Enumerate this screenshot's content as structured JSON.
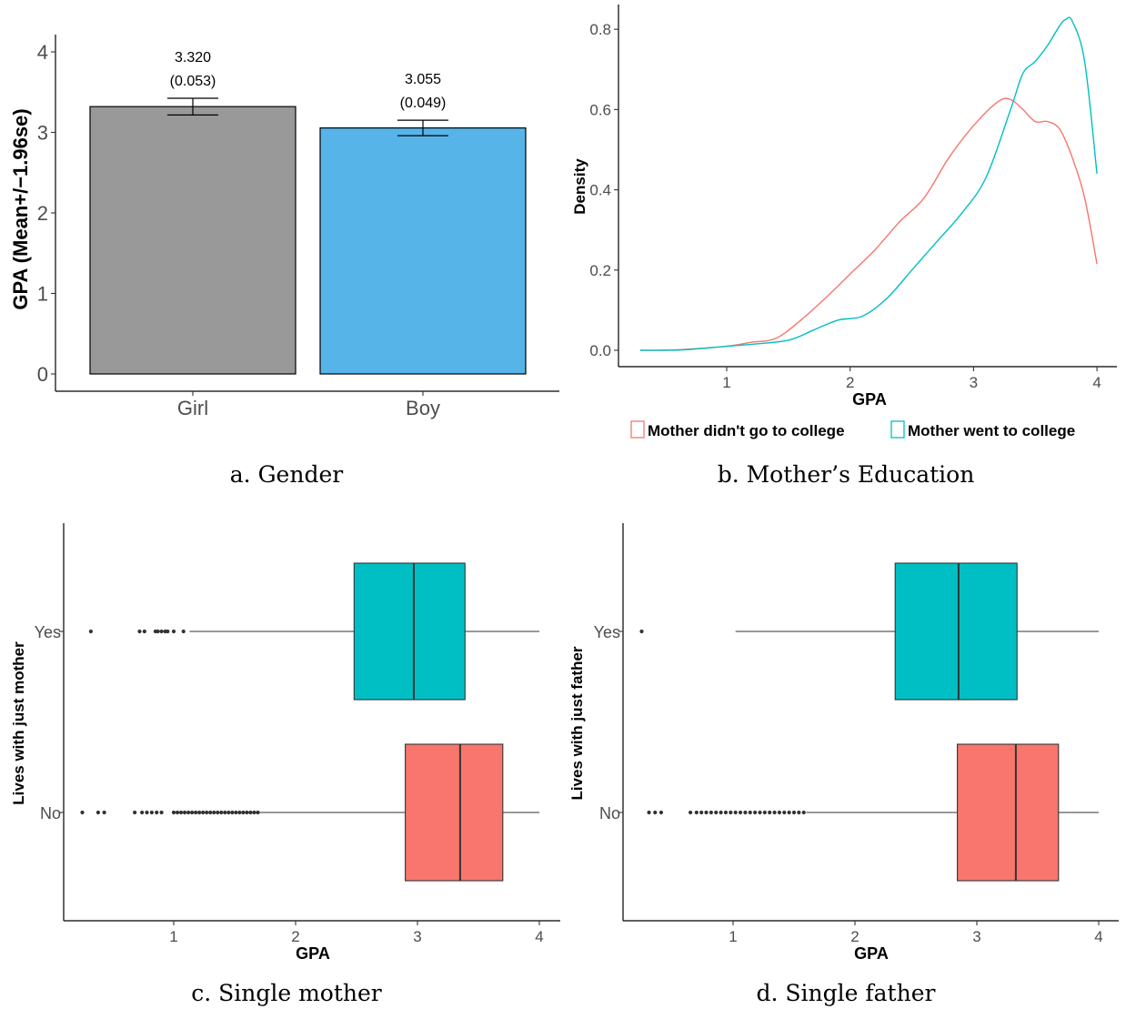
{
  "chart_data": [
    {
      "type": "bar",
      "caption": "a. Gender",
      "categories": [
        "Girl",
        "Boy"
      ],
      "values": [
        3.32,
        3.055
      ],
      "se_labels": [
        "(0.053)",
        "(0.049)"
      ],
      "value_labels": [
        "3.320",
        "3.055"
      ],
      "errors": [
        0.104,
        0.096
      ],
      "colors": [
        "#999999",
        "#56B4E9"
      ],
      "ylabel": "GPA (Mean+/−1.96se)",
      "ylim": [
        0,
        4.2
      ],
      "yticks": [
        "0",
        "1",
        "2",
        "3",
        "4"
      ],
      "grid": false
    },
    {
      "type": "line",
      "caption": "b. Mother’s Education",
      "xlabel": "GPA",
      "ylabel": "Density",
      "xlim": [
        0.25,
        4.1
      ],
      "ylim": [
        -0.04,
        0.87
      ],
      "xticks": [
        "1",
        "2",
        "3",
        "4"
      ],
      "yticks": [
        "0.0",
        "0.2",
        "0.4",
        "0.6",
        "0.8"
      ],
      "legend": "bottom",
      "grid": false,
      "series": [
        {
          "name": "Mother didn't go to college",
          "color": "#F8766D",
          "points": [
            [
              0.3,
              0.0
            ],
            [
              0.5,
              0.0
            ],
            [
              0.7,
              0.003
            ],
            [
              1.0,
              0.01
            ],
            [
              1.2,
              0.02
            ],
            [
              1.4,
              0.03
            ],
            [
              1.6,
              0.075
            ],
            [
              1.8,
              0.13
            ],
            [
              2.0,
              0.19
            ],
            [
              2.2,
              0.25
            ],
            [
              2.4,
              0.32
            ],
            [
              2.6,
              0.38
            ],
            [
              2.8,
              0.48
            ],
            [
              3.0,
              0.56
            ],
            [
              3.2,
              0.62
            ],
            [
              3.3,
              0.625
            ],
            [
              3.4,
              0.6
            ],
            [
              3.5,
              0.57
            ],
            [
              3.6,
              0.57
            ],
            [
              3.7,
              0.55
            ],
            [
              3.8,
              0.48
            ],
            [
              3.9,
              0.38
            ],
            [
              4.0,
              0.215
            ]
          ]
        },
        {
          "name": "Mother went to college",
          "color": "#00BFC4",
          "points": [
            [
              0.3,
              0.0
            ],
            [
              0.5,
              0.0
            ],
            [
              0.7,
              0.002
            ],
            [
              1.0,
              0.01
            ],
            [
              1.2,
              0.015
            ],
            [
              1.5,
              0.025
            ],
            [
              1.7,
              0.05
            ],
            [
              1.9,
              0.075
            ],
            [
              2.1,
              0.085
            ],
            [
              2.3,
              0.13
            ],
            [
              2.5,
              0.2
            ],
            [
              2.7,
              0.27
            ],
            [
              2.9,
              0.34
            ],
            [
              3.1,
              0.43
            ],
            [
              3.3,
              0.6
            ],
            [
              3.4,
              0.69
            ],
            [
              3.5,
              0.72
            ],
            [
              3.6,
              0.76
            ],
            [
              3.7,
              0.81
            ],
            [
              3.75,
              0.825
            ],
            [
              3.8,
              0.82
            ],
            [
              3.9,
              0.72
            ],
            [
              4.0,
              0.44
            ]
          ]
        }
      ]
    },
    {
      "type": "box",
      "caption": "c. Single mother",
      "xlabel": "GPA",
      "ylabel": "Lives with just mother",
      "xlim": [
        0.1,
        4.18
      ],
      "xticks": [
        "1",
        "2",
        "3",
        "4"
      ],
      "categories": [
        "Yes",
        "No"
      ],
      "boxes": [
        {
          "label": "Yes",
          "color": "#00BFC4",
          "whisker_low": 1.13,
          "q1": 2.48,
          "median": 2.97,
          "q3": 3.39,
          "whisker_high": 4.0,
          "outliers": [
            0.32,
            0.72,
            0.76,
            0.85,
            0.87,
            0.9,
            0.93,
            0.95,
            1.0,
            1.08
          ]
        },
        {
          "label": "No",
          "color": "#F8766D",
          "whisker_low": 1.7,
          "q1": 2.9,
          "median": 3.35,
          "q3": 3.7,
          "whisker_high": 4.0,
          "outliers": [
            0.25,
            0.38,
            0.43,
            0.68,
            0.74,
            0.78,
            0.82,
            0.86,
            0.9,
            1.0,
            1.03,
            1.06,
            1.09,
            1.12,
            1.15,
            1.18,
            1.21,
            1.24,
            1.27,
            1.3,
            1.33,
            1.36,
            1.39,
            1.42,
            1.45,
            1.48,
            1.51,
            1.54,
            1.57,
            1.6,
            1.63,
            1.66,
            1.69
          ]
        }
      ]
    },
    {
      "type": "box",
      "caption": "d. Single father",
      "xlabel": "GPA",
      "ylabel": "Lives with just father",
      "xlim": [
        0.1,
        4.18
      ],
      "xticks": [
        "1",
        "2",
        "3",
        "4"
      ],
      "categories": [
        "Yes",
        "No"
      ],
      "boxes": [
        {
          "label": "Yes",
          "color": "#00BFC4",
          "whisker_low": 1.02,
          "q1": 2.33,
          "median": 2.85,
          "q3": 3.33,
          "whisker_high": 4.0,
          "outliers": [
            0.25
          ]
        },
        {
          "label": "No",
          "color": "#F8766D",
          "whisker_low": 1.6,
          "q1": 2.84,
          "median": 3.32,
          "q3": 3.67,
          "whisker_high": 4.0,
          "outliers": [
            0.31,
            0.36,
            0.41,
            0.65,
            0.7,
            0.74,
            0.78,
            0.82,
            0.86,
            0.9,
            0.94,
            0.98,
            1.02,
            1.06,
            1.1,
            1.14,
            1.18,
            1.22,
            1.26,
            1.3,
            1.34,
            1.38,
            1.42,
            1.46,
            1.5,
            1.54,
            1.58
          ]
        }
      ]
    }
  ]
}
